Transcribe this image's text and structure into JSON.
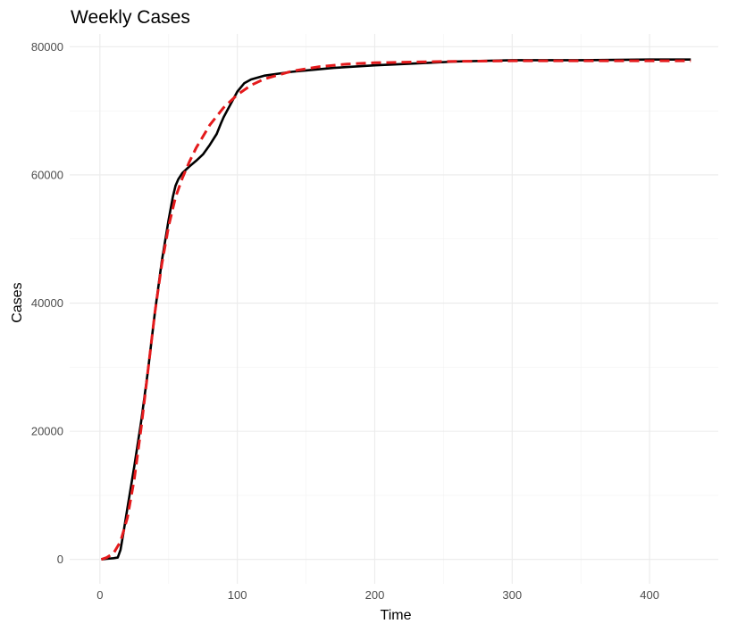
{
  "chart_data": {
    "type": "line",
    "title": "Weekly Cases",
    "xlabel": "Time",
    "ylabel": "Cases",
    "xlim": [
      -22,
      450
    ],
    "ylim": [
      -3800,
      82000
    ],
    "x_ticks": [
      0,
      100,
      200,
      300,
      400
    ],
    "y_ticks": [
      0,
      20000,
      40000,
      60000,
      80000
    ],
    "grid": true,
    "legend": "none",
    "series": [
      {
        "color": "#000000",
        "style": "solid",
        "x": [
          1,
          5,
          10,
          13,
          15,
          17,
          20,
          25,
          30,
          35,
          40,
          45,
          50,
          53,
          55,
          57,
          60,
          65,
          70,
          75,
          80,
          85,
          88,
          90,
          95,
          100,
          105,
          110,
          120,
          130,
          140,
          150,
          170,
          200,
          230,
          260,
          300,
          350,
          400,
          430
        ],
        "y": [
          0,
          100,
          200,
          300,
          1500,
          4000,
          8000,
          14500,
          21500,
          29500,
          38500,
          46500,
          53000,
          56500,
          58300,
          59300,
          60300,
          61300,
          62200,
          63200,
          64700,
          66400,
          68000,
          69000,
          71000,
          73000,
          74300,
          74900,
          75500,
          75800,
          76100,
          76300,
          76700,
          77100,
          77400,
          77700,
          77900,
          77900,
          78000,
          78000
        ]
      },
      {
        "color": "#e41a1c",
        "style": "dashed",
        "x": [
          1,
          5,
          10,
          15,
          20,
          25,
          30,
          35,
          40,
          45,
          50,
          55,
          60,
          65,
          70,
          75,
          80,
          90,
          100,
          110,
          120,
          140,
          160,
          180,
          200,
          250,
          300,
          350,
          400,
          430
        ],
        "y": [
          0,
          300,
          1000,
          2800,
          6500,
          12500,
          20500,
          29500,
          38500,
          46000,
          52000,
          56500,
          59500,
          62000,
          64200,
          66000,
          67800,
          70500,
          72500,
          74000,
          75000,
          76200,
          76900,
          77300,
          77500,
          77700,
          77800,
          77800,
          77800,
          77800
        ]
      }
    ]
  }
}
